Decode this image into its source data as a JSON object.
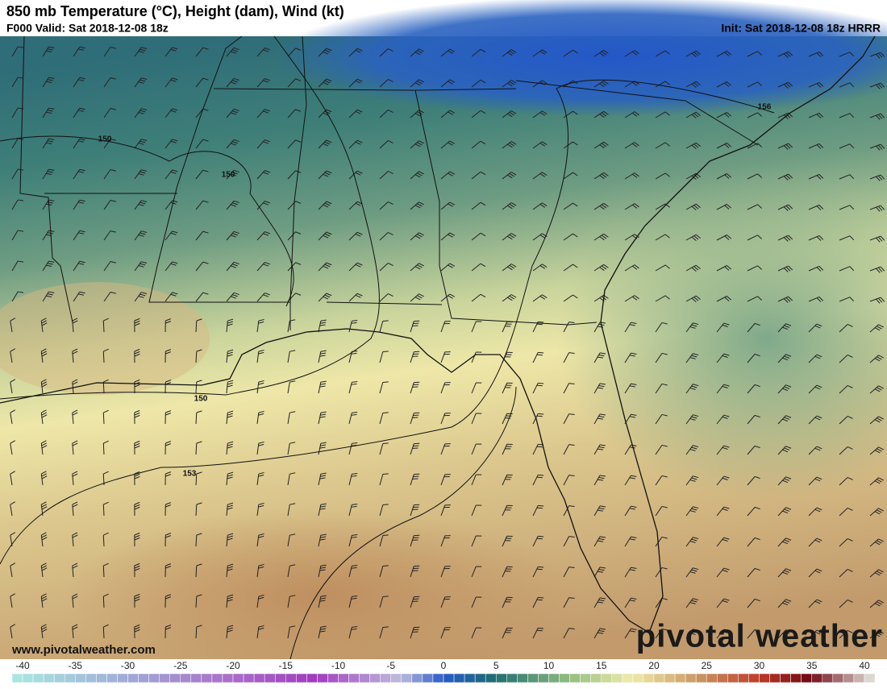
{
  "header": {
    "title": "850 mb Temperature (°C), Height (dam), Wind (kt)",
    "valid": "F000 Valid: Sat 2018-12-08 18z",
    "init": "Init: Sat 2018-12-08 18z HRRR"
  },
  "map": {
    "contour_labels": [
      "150",
      "150",
      "150",
      "153",
      "156"
    ]
  },
  "footer": {
    "website": "www.pivotalweather.com",
    "logo": "pivotal weather"
  },
  "colorbar": {
    "ticks": [
      -40,
      -35,
      -30,
      -25,
      -20,
      -15,
      -10,
      -5,
      0,
      5,
      10,
      15,
      20,
      25,
      30,
      35,
      40
    ]
  }
}
